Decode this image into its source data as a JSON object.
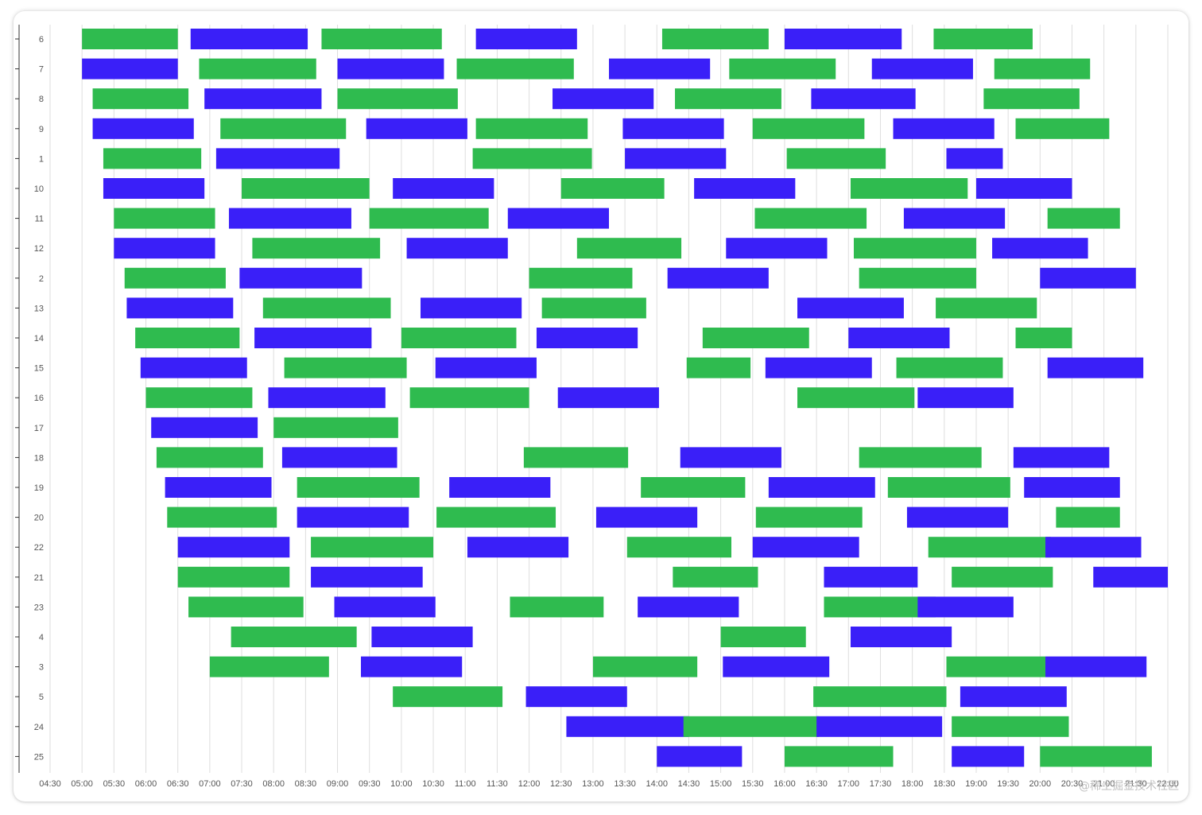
{
  "chart_data": {
    "type": "gantt",
    "title": "",
    "xlabel": "",
    "ylabel": "",
    "x_ticks": [
      "04:30",
      "05:00",
      "05:30",
      "06:00",
      "06:30",
      "07:00",
      "07:30",
      "08:00",
      "08:30",
      "09:00",
      "09:30",
      "10:00",
      "10:30",
      "11:00",
      "11:30",
      "12:00",
      "12:30",
      "13:00",
      "13:30",
      "14:00",
      "14:30",
      "15:00",
      "15:30",
      "16:00",
      "16:30",
      "17:00",
      "17:30",
      "18:00",
      "18:30",
      "19:00",
      "19:30",
      "20:00",
      "20:30",
      "21:00",
      "21:30",
      "22:00"
    ],
    "xlim": [
      "04:30",
      "22:00"
    ],
    "grid": "vertical",
    "colors": {
      "green": "#2fbb4f",
      "blue": "#3a1ff8"
    },
    "categories": [
      "6",
      "7",
      "8",
      "9",
      "1",
      "10",
      "11",
      "12",
      "2",
      "13",
      "14",
      "15",
      "16",
      "17",
      "18",
      "19",
      "20",
      "22",
      "21",
      "23",
      "3",
      "4",
      "5",
      "24",
      "25"
    ],
    "rows": [
      {
        "label": "6",
        "bars": [
          [
            "05:00",
            "06:30",
            "green"
          ],
          [
            "06:42",
            "08:32",
            "blue"
          ],
          [
            "08:45",
            "10:38",
            "green"
          ],
          [
            "11:10",
            "12:45",
            "blue"
          ],
          [
            "14:05",
            "15:45",
            "green"
          ],
          [
            "16:00",
            "17:50",
            "blue"
          ],
          [
            "18:20",
            "19:53",
            "green"
          ]
        ]
      },
      {
        "label": "7",
        "bars": [
          [
            "05:00",
            "06:30",
            "blue"
          ],
          [
            "06:50",
            "08:40",
            "green"
          ],
          [
            "09:00",
            "10:40",
            "blue"
          ],
          [
            "10:52",
            "12:42",
            "green"
          ],
          [
            "13:15",
            "14:50",
            "blue"
          ],
          [
            "15:08",
            "16:48",
            "green"
          ],
          [
            "17:22",
            "18:57",
            "blue"
          ],
          [
            "19:17",
            "20:47",
            "green"
          ]
        ]
      },
      {
        "label": "8",
        "bars": [
          [
            "05:10",
            "06:40",
            "green"
          ],
          [
            "06:55",
            "08:45",
            "blue"
          ],
          [
            "09:00",
            "10:53",
            "green"
          ],
          [
            "12:22",
            "13:57",
            "blue"
          ],
          [
            "14:17",
            "15:57",
            "green"
          ],
          [
            "16:25",
            "18:03",
            "blue"
          ],
          [
            "19:07",
            "20:37",
            "green"
          ]
        ]
      },
      {
        "label": "9",
        "bars": [
          [
            "05:10",
            "06:45",
            "blue"
          ],
          [
            "07:10",
            "09:08",
            "green"
          ],
          [
            "09:27",
            "11:02",
            "blue"
          ],
          [
            "11:10",
            "12:55",
            "green"
          ],
          [
            "13:28",
            "15:03",
            "blue"
          ],
          [
            "15:30",
            "17:15",
            "green"
          ],
          [
            "17:42",
            "19:17",
            "blue"
          ],
          [
            "19:37",
            "21:05",
            "green"
          ]
        ]
      },
      {
        "label": "1",
        "bars": [
          [
            "05:20",
            "06:52",
            "green"
          ],
          [
            "07:06",
            "09:02",
            "blue"
          ],
          [
            "11:07",
            "12:59",
            "green"
          ],
          [
            "13:30",
            "15:05",
            "blue"
          ],
          [
            "15:62",
            "17:35",
            "green"
          ],
          [
            "17:92",
            "19:25",
            "blue"
          ]
        ]
      },
      {
        "label": "10",
        "bars": [
          [
            "05:20",
            "06:55",
            "blue"
          ],
          [
            "07:30",
            "09:30",
            "green"
          ],
          [
            "09:52",
            "11:27",
            "blue"
          ],
          [
            "12:30",
            "14:07",
            "green"
          ],
          [
            "14:35",
            "16:10",
            "blue"
          ],
          [
            "17:02",
            "18:52",
            "green"
          ],
          [
            "19:00",
            "20:30",
            "blue"
          ]
        ]
      },
      {
        "label": "11",
        "bars": [
          [
            "05:30",
            "07:05",
            "green"
          ],
          [
            "07:18",
            "09:13",
            "blue"
          ],
          [
            "09:30",
            "11:22",
            "green"
          ],
          [
            "11:40",
            "13:15",
            "blue"
          ],
          [
            "15:32",
            "17:17",
            "green"
          ],
          [
            "17:52",
            "19:27",
            "blue"
          ],
          [
            "19:67",
            "21:15",
            "green"
          ]
        ]
      },
      {
        "label": "12",
        "bars": [
          [
            "05:30",
            "07:05",
            "blue"
          ],
          [
            "07:40",
            "09:40",
            "green"
          ],
          [
            "10:05",
            "11:40",
            "blue"
          ],
          [
            "12:45",
            "14:23",
            "green"
          ],
          [
            "15:05",
            "16:40",
            "blue"
          ],
          [
            "17:05",
            "18:60",
            "green"
          ],
          [
            "19:15",
            "20:45",
            "blue"
          ]
        ]
      },
      {
        "label": "2",
        "bars": [
          [
            "05:40",
            "07:15",
            "green"
          ],
          [
            "07:28",
            "09:23",
            "blue"
          ],
          [
            "12:00",
            "13:37",
            "green"
          ],
          [
            "14:10",
            "15:45",
            "blue"
          ],
          [
            "17:10",
            "18:60",
            "green"
          ],
          [
            "20:00",
            "21:30",
            "blue"
          ]
        ]
      },
      {
        "label": "13",
        "bars": [
          [
            "05:42",
            "07:22",
            "blue"
          ],
          [
            "07:50",
            "09:50",
            "green"
          ],
          [
            "10:18",
            "11:53",
            "blue"
          ],
          [
            "12:12",
            "13:50",
            "green"
          ],
          [
            "16:12",
            "17:52",
            "blue"
          ],
          [
            "18:22",
            "19:57",
            "green"
          ]
        ]
      },
      {
        "label": "14",
        "bars": [
          [
            "05:50",
            "07:28",
            "green"
          ],
          [
            "07:42",
            "09:32",
            "blue"
          ],
          [
            "09:60",
            "11:48",
            "green"
          ],
          [
            "12:07",
            "13:42",
            "blue"
          ],
          [
            "14:43",
            "16:23",
            "green"
          ],
          [
            "17:00",
            "18:35",
            "blue"
          ],
          [
            "18:97",
            "20:30",
            "green"
          ]
        ]
      },
      {
        "label": "15",
        "bars": [
          [
            "05:55",
            "07:35",
            "blue"
          ],
          [
            "08:10",
            "10:05",
            "green"
          ],
          [
            "10:32",
            "12:07",
            "blue"
          ],
          [
            "13:88",
            "15:28",
            "green"
          ],
          [
            "15:42",
            "17:22",
            "blue"
          ],
          [
            "17:45",
            "19:25",
            "green"
          ],
          [
            "20:07",
            "21:37",
            "blue"
          ]
        ]
      },
      {
        "label": "16",
        "bars": [
          [
            "06:00",
            "07:40",
            "green"
          ],
          [
            "07:55",
            "09:45",
            "blue"
          ],
          [
            "10:08",
            "11:60",
            "green"
          ],
          [
            "12:27",
            "14:02",
            "blue"
          ],
          [
            "16:12",
            "17:62",
            "green"
          ],
          [
            "18:05",
            "19:35",
            "blue"
          ]
        ]
      },
      {
        "label": "17",
        "bars": [
          [
            "06:05",
            "07:45",
            "blue"
          ],
          [
            "07:60",
            "09:57",
            "green"
          ]
        ]
      },
      {
        "label": "18",
        "bars": [
          [
            "06:10",
            "07:50",
            "green"
          ],
          [
            "08:08",
            "09:56",
            "blue"
          ],
          [
            "11:55",
            "13:33",
            "green"
          ],
          [
            "14:22",
            "15:57",
            "blue"
          ],
          [
            "17:10",
            "19:05",
            "green"
          ],
          [
            "19:35",
            "21:05",
            "blue"
          ]
        ]
      },
      {
        "label": "19",
        "bars": [
          [
            "06:18",
            "07:58",
            "blue"
          ],
          [
            "08:22",
            "10:17",
            "green"
          ],
          [
            "10:45",
            "12:20",
            "blue"
          ],
          [
            "13:45",
            "15:23",
            "green"
          ],
          [
            "15:45",
            "17:25",
            "blue"
          ],
          [
            "17:37",
            "19:32",
            "green"
          ],
          [
            "19:45",
            "21:15",
            "blue"
          ]
        ]
      },
      {
        "label": "20",
        "bars": [
          [
            "06:20",
            "08:03",
            "green"
          ],
          [
            "08:22",
            "10:07",
            "blue"
          ],
          [
            "10:33",
            "12:25",
            "green"
          ],
          [
            "13:03",
            "14:38",
            "blue"
          ],
          [
            "15:33",
            "17:13",
            "green"
          ],
          [
            "17:55",
            "19:30",
            "blue"
          ],
          [
            "19:75",
            "21:15",
            "green"
          ]
        ]
      },
      {
        "label": "22",
        "bars": [
          [
            "06:30",
            "08:15",
            "blue"
          ],
          [
            "08:35",
            "10:30",
            "green"
          ],
          [
            "11:02",
            "12:37",
            "blue"
          ],
          [
            "13:32",
            "15:10",
            "green"
          ],
          [
            "15:30",
            "17:10",
            "blue"
          ],
          [
            "17:75",
            "19:70",
            "green"
          ],
          [
            "20:05",
            "21:35",
            "blue"
          ]
        ]
      },
      {
        "label": "21",
        "bars": [
          [
            "06:30",
            "08:15",
            "green"
          ],
          [
            "08:35",
            "10:20",
            "blue"
          ],
          [
            "13:75",
            "15:35",
            "green"
          ],
          [
            "15:97",
            "17:65",
            "blue"
          ],
          [
            "17:97",
            "19:72",
            "green"
          ],
          [
            "20:50",
            "22:00",
            "blue"
          ]
        ]
      },
      {
        "label": "23",
        "bars": [
          [
            "06:40",
            "08:28",
            "green"
          ],
          [
            "08:57",
            "10:32",
            "blue"
          ],
          [
            "11:42",
            "13:10",
            "green"
          ],
          [
            "13:42",
            "15:17",
            "blue"
          ],
          [
            "15:97",
            "17:82",
            "green"
          ],
          [
            "18:05",
            "19:35",
            "blue"
          ]
        ]
      },
      {
        "label": "4",
        "bars": [
          [
            "07:20",
            "09:18",
            "green"
          ],
          [
            "09:32",
            "11:07",
            "blue"
          ],
          [
            "14:60",
            "16:20",
            "green"
          ],
          [
            "17:02",
            "18:37",
            "blue"
          ]
        ]
      },
      {
        "label": "3",
        "bars": [
          [
            "07:00",
            "08:52",
            "green"
          ],
          [
            "09:22",
            "10:57",
            "blue"
          ],
          [
            "13:00",
            "14:38",
            "green"
          ],
          [
            "15:02",
            "16:42",
            "blue"
          ],
          [
            "17:92",
            "19:65",
            "green"
          ],
          [
            "20:05",
            "21:40",
            "blue"
          ]
        ]
      },
      {
        "label": "5",
        "bars": [
          [
            "09:52",
            "11:35",
            "green"
          ],
          [
            "11:57",
            "13:32",
            "blue"
          ],
          [
            "16:27",
            "17:92",
            "green"
          ],
          [
            "18:45",
            "19:85",
            "blue"
          ]
        ]
      },
      {
        "label": "24",
        "bars": [
          [
            "12:35",
            "13:90",
            "blue"
          ],
          [
            "14:25",
            "15:92",
            "green"
          ],
          [
            "16:30",
            "17:88",
            "blue"
          ],
          [
            "18:37",
            "19:87",
            "green"
          ]
        ]
      },
      {
        "label": "25",
        "bars": [
          [
            "13:60",
            "15:20",
            "blue"
          ],
          [
            "15:60",
            "17:42",
            "green"
          ],
          [
            "17:97",
            "19:45",
            "blue"
          ],
          [
            "20:00",
            "21:45",
            "green"
          ]
        ]
      }
    ]
  },
  "watermark": "@稀土掘金技术社区"
}
